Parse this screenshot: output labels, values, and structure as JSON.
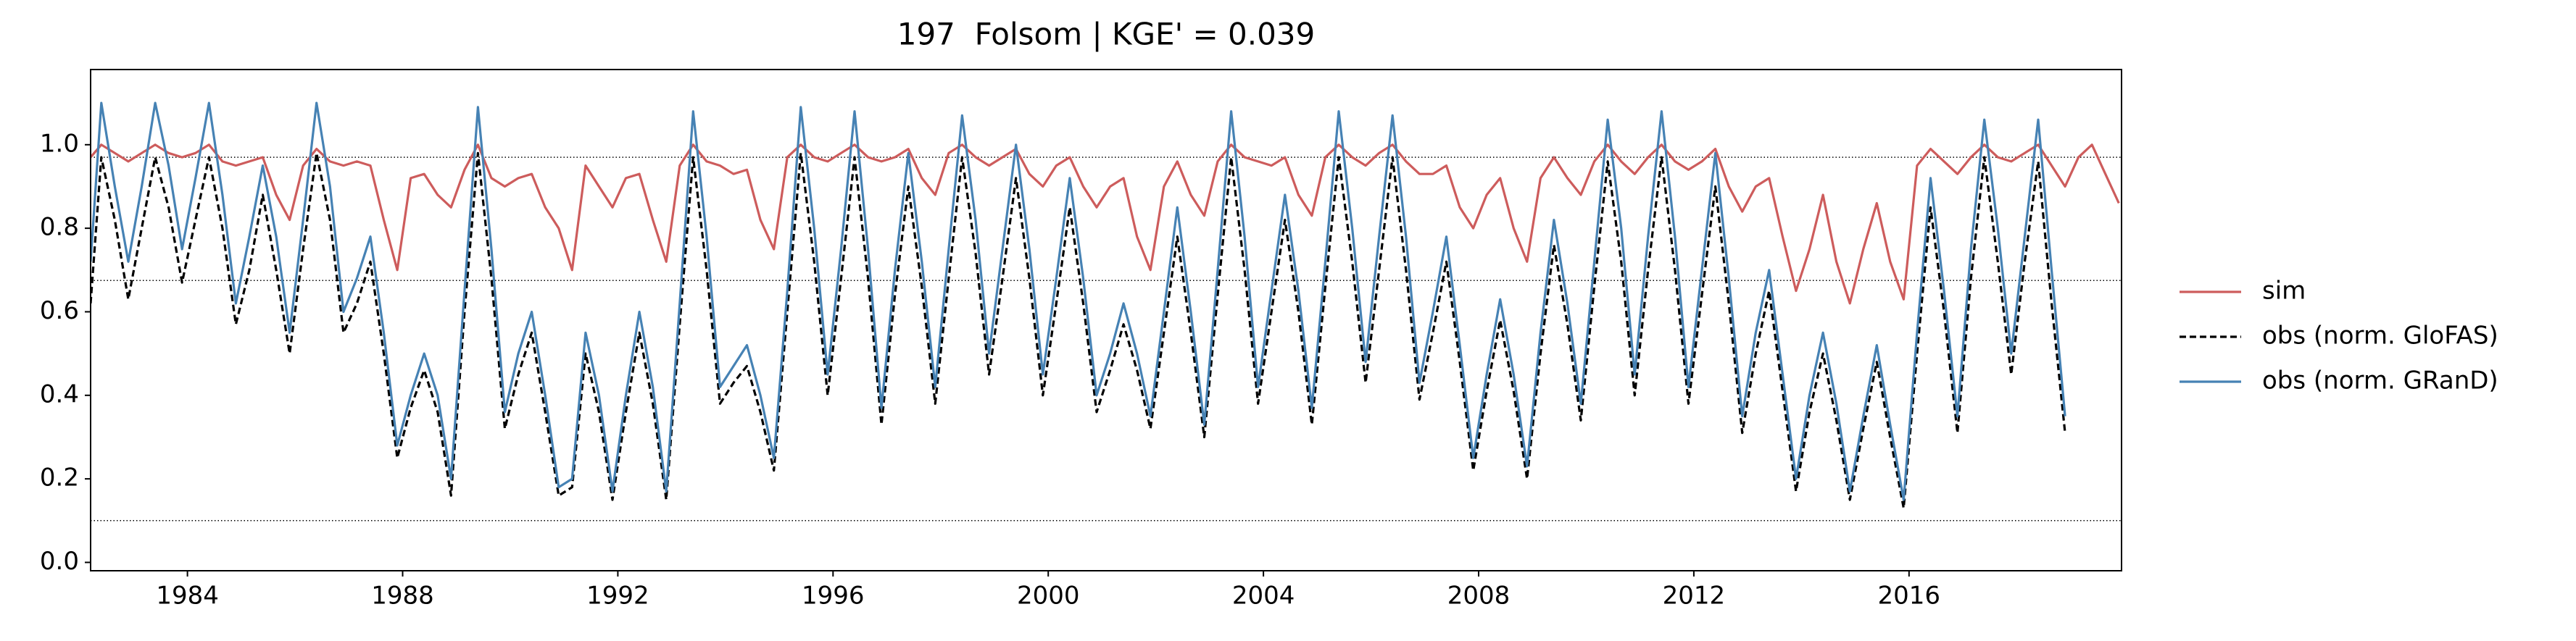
{
  "chart_data": {
    "type": "line",
    "title": "197  Folsom | KGE' = 0.039",
    "x": [
      1982.2,
      1982.4,
      1982.65,
      1982.9,
      1983.15,
      1983.4,
      1983.65,
      1983.9,
      1984.15,
      1984.4,
      1984.65,
      1984.9,
      1985.15,
      1985.4,
      1985.65,
      1985.9,
      1986.15,
      1986.4,
      1986.65,
      1986.9,
      1987.15,
      1987.4,
      1987.65,
      1987.9,
      1988.15,
      1988.4,
      1988.65,
      1988.9,
      1989.15,
      1989.4,
      1989.65,
      1989.9,
      1990.15,
      1990.4,
      1990.65,
      1990.9,
      1991.15,
      1991.4,
      1991.65,
      1991.9,
      1992.15,
      1992.4,
      1992.65,
      1992.9,
      1993.15,
      1993.4,
      1993.65,
      1993.9,
      1994.15,
      1994.4,
      1994.65,
      1994.9,
      1995.15,
      1995.4,
      1995.65,
      1995.9,
      1996.15,
      1996.4,
      1996.65,
      1996.9,
      1997.15,
      1997.4,
      1997.65,
      1997.9,
      1998.15,
      1998.4,
      1998.65,
      1998.9,
      1999.15,
      1999.4,
      1999.65,
      1999.9,
      2000.15,
      2000.4,
      2000.65,
      2000.9,
      2001.15,
      2001.4,
      2001.65,
      2001.9,
      2002.15,
      2002.4,
      2002.65,
      2002.9,
      2003.15,
      2003.4,
      2003.65,
      2003.9,
      2004.15,
      2004.4,
      2004.65,
      2004.9,
      2005.15,
      2005.4,
      2005.65,
      2005.9,
      2006.15,
      2006.4,
      2006.65,
      2006.9,
      2007.15,
      2007.4,
      2007.65,
      2007.9,
      2008.15,
      2008.4,
      2008.65,
      2008.9,
      2009.15,
      2009.4,
      2009.65,
      2009.9,
      2010.15,
      2010.4,
      2010.65,
      2010.9,
      2011.15,
      2011.4,
      2011.65,
      2011.9,
      2012.15,
      2012.4,
      2012.65,
      2012.9,
      2013.15,
      2013.4,
      2013.65,
      2013.9,
      2014.15,
      2014.4,
      2014.65,
      2014.9,
      2015.15,
      2015.4,
      2015.65,
      2015.9,
      2016.15,
      2016.4,
      2016.65,
      2016.9,
      2017.15,
      2017.4,
      2017.65,
      2017.9,
      2018.15,
      2018.4,
      2018.65,
      2018.9,
      2019.15,
      2019.4,
      2019.65,
      2019.9
    ],
    "series": [
      {
        "name": "sim",
        "color": "#cd5c5c",
        "dash": false,
        "values": [
          0.97,
          1.0,
          0.98,
          0.96,
          0.98,
          1.0,
          0.98,
          0.97,
          0.98,
          1.0,
          0.96,
          0.95,
          0.96,
          0.97,
          0.88,
          0.82,
          0.95,
          0.99,
          0.96,
          0.95,
          0.96,
          0.95,
          0.82,
          0.7,
          0.92,
          0.93,
          0.88,
          0.85,
          0.94,
          1.0,
          0.92,
          0.9,
          0.92,
          0.93,
          0.85,
          0.8,
          0.7,
          0.95,
          0.9,
          0.85,
          0.92,
          0.93,
          0.82,
          0.72,
          0.95,
          1.0,
          0.96,
          0.95,
          0.93,
          0.94,
          0.82,
          0.75,
          0.97,
          1.0,
          0.97,
          0.96,
          0.98,
          1.0,
          0.97,
          0.96,
          0.97,
          0.99,
          0.92,
          0.88,
          0.98,
          1.0,
          0.97,
          0.95,
          0.97,
          0.99,
          0.93,
          0.9,
          0.95,
          0.97,
          0.9,
          0.85,
          0.9,
          0.92,
          0.78,
          0.7,
          0.9,
          0.96,
          0.88,
          0.83,
          0.96,
          1.0,
          0.97,
          0.96,
          0.95,
          0.97,
          0.88,
          0.83,
          0.97,
          1.0,
          0.97,
          0.95,
          0.98,
          1.0,
          0.96,
          0.93,
          0.93,
          0.95,
          0.85,
          0.8,
          0.88,
          0.92,
          0.8,
          0.72,
          0.92,
          0.97,
          0.92,
          0.88,
          0.96,
          1.0,
          0.96,
          0.93,
          0.97,
          1.0,
          0.96,
          0.94,
          0.96,
          0.99,
          0.9,
          0.84,
          0.9,
          0.92,
          0.78,
          0.65,
          0.75,
          0.88,
          0.72,
          0.62,
          0.75,
          0.86,
          0.72,
          0.63,
          0.95,
          0.99,
          0.96,
          0.93,
          0.97,
          1.0,
          0.97,
          0.96,
          0.98,
          1.0,
          0.95,
          0.9,
          0.97,
          1.0,
          0.93,
          0.86
        ]
      },
      {
        "name": "obs (norm. GloFAS)",
        "color": "#000000",
        "dash": true,
        "values": [
          0.62,
          0.97,
          0.82,
          0.63,
          0.8,
          0.97,
          0.85,
          0.67,
          0.82,
          0.97,
          0.8,
          0.57,
          0.7,
          0.88,
          0.7,
          0.5,
          0.75,
          0.98,
          0.82,
          0.55,
          0.62,
          0.72,
          0.5,
          0.25,
          0.37,
          0.46,
          0.36,
          0.16,
          0.6,
          0.98,
          0.68,
          0.32,
          0.45,
          0.55,
          0.36,
          0.16,
          0.18,
          0.5,
          0.36,
          0.15,
          0.36,
          0.55,
          0.38,
          0.15,
          0.57,
          0.97,
          0.7,
          0.38,
          0.43,
          0.47,
          0.36,
          0.22,
          0.6,
          0.98,
          0.72,
          0.4,
          0.68,
          0.97,
          0.68,
          0.33,
          0.64,
          0.9,
          0.66,
          0.38,
          0.68,
          0.97,
          0.74,
          0.45,
          0.68,
          0.92,
          0.68,
          0.4,
          0.62,
          0.85,
          0.62,
          0.36,
          0.46,
          0.57,
          0.46,
          0.32,
          0.55,
          0.78,
          0.55,
          0.3,
          0.64,
          0.97,
          0.7,
          0.38,
          0.6,
          0.82,
          0.6,
          0.33,
          0.66,
          0.97,
          0.72,
          0.43,
          0.7,
          0.97,
          0.7,
          0.39,
          0.55,
          0.72,
          0.48,
          0.22,
          0.41,
          0.58,
          0.41,
          0.2,
          0.5,
          0.76,
          0.57,
          0.34,
          0.66,
          0.96,
          0.72,
          0.4,
          0.7,
          0.97,
          0.7,
          0.38,
          0.64,
          0.9,
          0.62,
          0.31,
          0.5,
          0.65,
          0.41,
          0.17,
          0.36,
          0.5,
          0.34,
          0.15,
          0.32,
          0.48,
          0.3,
          0.13,
          0.5,
          0.85,
          0.6,
          0.31,
          0.68,
          0.97,
          0.72,
          0.45,
          0.72,
          0.96,
          0.62,
          0.31,
          null,
          null,
          null,
          null
        ]
      },
      {
        "name": "obs (norm. GRanD)",
        "color": "#4682b4",
        "dash": false,
        "values": [
          0.72,
          1.1,
          0.9,
          0.72,
          0.9,
          1.1,
          0.95,
          0.75,
          0.92,
          1.1,
          0.88,
          0.62,
          0.78,
          0.95,
          0.78,
          0.55,
          0.82,
          1.1,
          0.9,
          0.6,
          0.68,
          0.78,
          0.55,
          0.28,
          0.4,
          0.5,
          0.4,
          0.2,
          0.65,
          1.09,
          0.75,
          0.36,
          0.5,
          0.6,
          0.4,
          0.18,
          0.2,
          0.55,
          0.4,
          0.17,
          0.4,
          0.6,
          0.42,
          0.17,
          0.62,
          1.08,
          0.78,
          0.42,
          0.47,
          0.52,
          0.4,
          0.25,
          0.65,
          1.09,
          0.8,
          0.45,
          0.75,
          1.08,
          0.75,
          0.37,
          0.7,
          0.98,
          0.72,
          0.42,
          0.75,
          1.07,
          0.82,
          0.5,
          0.75,
          1.0,
          0.75,
          0.45,
          0.68,
          0.92,
          0.68,
          0.4,
          0.5,
          0.62,
          0.5,
          0.35,
          0.6,
          0.85,
          0.6,
          0.33,
          0.7,
          1.08,
          0.78,
          0.42,
          0.65,
          0.88,
          0.65,
          0.37,
          0.72,
          1.08,
          0.8,
          0.48,
          0.78,
          1.07,
          0.78,
          0.43,
          0.6,
          0.78,
          0.52,
          0.25,
          0.45,
          0.63,
          0.45,
          0.23,
          0.55,
          0.82,
          0.62,
          0.38,
          0.72,
          1.06,
          0.8,
          0.45,
          0.78,
          1.08,
          0.78,
          0.42,
          0.7,
          0.98,
          0.68,
          0.35,
          0.55,
          0.7,
          0.45,
          0.2,
          0.4,
          0.55,
          0.38,
          0.17,
          0.35,
          0.52,
          0.33,
          0.15,
          0.55,
          0.92,
          0.65,
          0.35,
          0.75,
          1.06,
          0.8,
          0.5,
          0.78,
          1.06,
          0.7,
          0.35,
          null,
          null,
          null,
          null
        ]
      }
    ],
    "hlines": [
      0.97,
      0.675,
      0.1
    ],
    "xlim": [
      1982.2,
      2019.95
    ],
    "ylim": [
      -0.02,
      1.18
    ],
    "xticks": [
      1984,
      1988,
      1992,
      1996,
      2000,
      2004,
      2008,
      2012,
      2016
    ],
    "yticks": [
      {
        "value": 0,
        "label": "0.0"
      },
      0.2,
      0.4,
      0.6,
      0.8,
      {
        "value": 1,
        "label": "1.0"
      }
    ],
    "legend": "right"
  }
}
